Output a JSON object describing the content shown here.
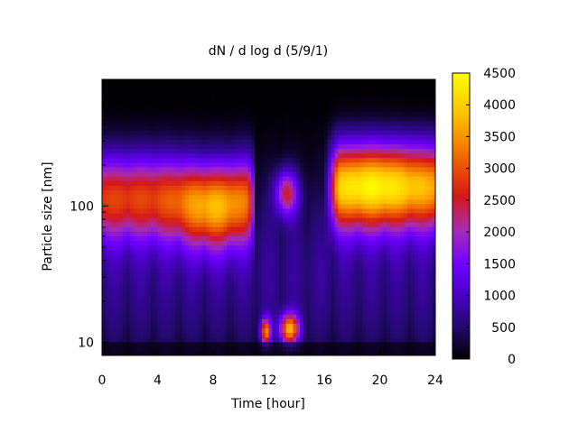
{
  "chart_data": {
    "type": "heatmap",
    "title": "dN / d log d (5/9/1)",
    "xlabel": "Time [hour]",
    "ylabel": "Particle size [nm]",
    "x_range": [
      0,
      24
    ],
    "x_ticks": [
      0,
      4,
      8,
      12,
      16,
      20,
      24
    ],
    "y_scale": "log",
    "y_range_nm": [
      8,
      850
    ],
    "y_tick_labels": [
      {
        "value": 10,
        "label": "10"
      },
      {
        "value": 100,
        "label": "100"
      }
    ],
    "colorbar": {
      "range": [
        0,
        4500
      ],
      "ticks": [
        0,
        500,
        1000,
        1500,
        2000,
        2500,
        3000,
        3500,
        4000,
        4500
      ],
      "palette": [
        "#000000",
        "#240a72",
        "#7000ff",
        "#a62cb5",
        "#d41818",
        "#f06300",
        "#ffbf00",
        "#ffff00"
      ]
    },
    "features": [
      {
        "time_hours": [
          0,
          10.5
        ],
        "size_nm": [
          50,
          250
        ],
        "peak_dN_dlogd": 3300
      },
      {
        "time_hours": [
          6,
          10
        ],
        "size_nm": [
          60,
          200
        ],
        "peak_dN_dlogd": 3600
      },
      {
        "time_hours": [
          11.5,
          12.2
        ],
        "size_nm": [
          10,
          14
        ],
        "peak_dN_dlogd": 3000
      },
      {
        "time_hours": [
          12.8,
          14.5
        ],
        "size_nm": [
          10,
          15
        ],
        "peak_dN_dlogd": 3300
      },
      {
        "time_hours": [
          16.5,
          24
        ],
        "size_nm": [
          60,
          300
        ],
        "peak_dN_dlogd": 4100
      }
    ],
    "grid": false,
    "legend": "colorbar-right"
  }
}
